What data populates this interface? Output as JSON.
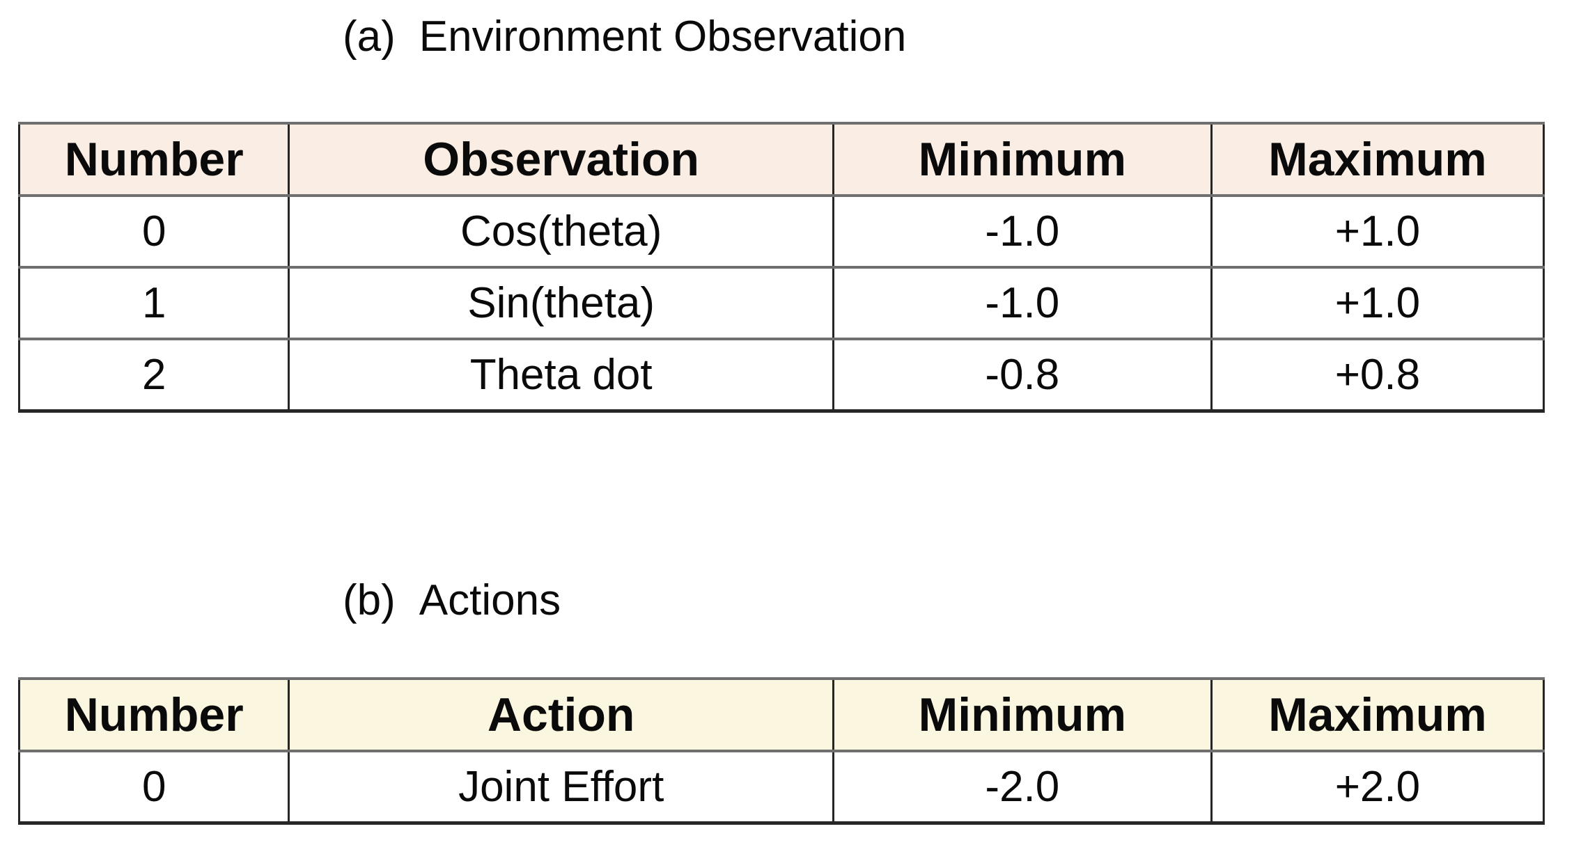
{
  "colors": {
    "observation_header_bg": "#faeee4",
    "actions_header_bg": "#fbf6df",
    "grid_gray": "#6f6f6f",
    "grid_dark": "#262626",
    "text": "#0a0a0a",
    "page_bg": "#ffffff"
  },
  "tables": [
    {
      "caption_prefix": "(a)",
      "caption": "Environment Observation",
      "headers": [
        "Number",
        "Observation",
        "Minimum",
        "Maximum"
      ],
      "rows": [
        [
          "0",
          "Cos(theta)",
          "-1.0",
          "+1.0"
        ],
        [
          "1",
          "Sin(theta)",
          "-1.0",
          "+1.0"
        ],
        [
          "2",
          "Theta dot",
          "-0.8",
          "+0.8"
        ]
      ]
    },
    {
      "caption_prefix": "(b)",
      "caption": "Actions",
      "headers": [
        "Number",
        "Action",
        "Minimum",
        "Maximum"
      ],
      "rows": [
        [
          "0",
          "Joint Effort",
          "-2.0",
          "+2.0"
        ]
      ]
    }
  ]
}
